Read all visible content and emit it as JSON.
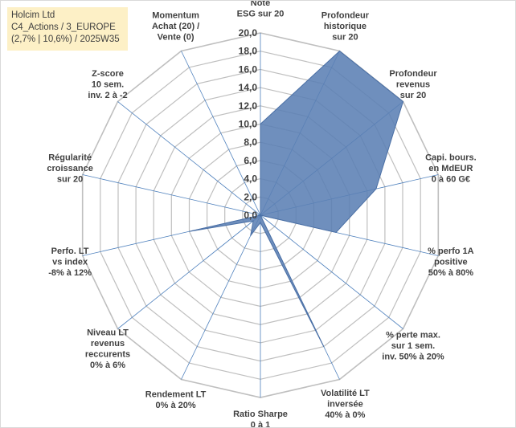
{
  "info_box": {
    "line1": "Holcim Ltd",
    "line2": "C4_Actions / 3_EUROPE",
    "line3": "(2,7% | 10,6%) / 2025W35"
  },
  "chart_data": {
    "type": "radar",
    "title": "",
    "rmin": 0,
    "rmax": 20,
    "tick_step": 2,
    "tick_labels": [
      "0,0",
      "2,0",
      "4,0",
      "6,0",
      "8,0",
      "10,0",
      "12,0",
      "14,0",
      "16,0",
      "18,0",
      "20,0"
    ],
    "grid": true,
    "colors": {
      "fill": "#5b7fb4",
      "stroke": "#4a6fa5",
      "grid": "#bfbfbf",
      "spoke": "#4f81bd",
      "text": "#404040",
      "info_bg": "#fdf0c6"
    },
    "axes": [
      [
        "Note",
        "ESG sur 20"
      ],
      [
        "Profondeur",
        "historique",
        "sur 20"
      ],
      [
        "Profondeur",
        "revenus",
        "sur 20"
      ],
      [
        "Capi. bours.",
        "en MdEUR",
        "0 à 60 G€"
      ],
      [
        "% perfo 1A",
        "positive",
        "50% à 80%"
      ],
      [
        "% perte max.",
        "sur 1 sem.",
        "inv. 50% à 20%"
      ],
      [
        "Volatilité LT",
        "inversée",
        "40% à 0%"
      ],
      [
        "Ratio Sharpe",
        "0 à 1"
      ],
      [
        "Rendement LT",
        "0% à 20%"
      ],
      [
        "Niveau LT",
        "revenus",
        "reccurents",
        "0% à 6%"
      ],
      [
        "Perfo. LT",
        "vs index",
        "-8% à 12%"
      ],
      [
        "Régularité",
        "croissance",
        "sur 20"
      ],
      [
        "Z-score",
        "10 sem.",
        "inv. 2 à -2"
      ],
      [
        "Momentum",
        "Achat (20) /",
        "Vente (0)"
      ]
    ],
    "series": [
      {
        "values": [
          10,
          20,
          20,
          13,
          8.5,
          0,
          16,
          0.8,
          2.5,
          1,
          8,
          0,
          0,
          0
        ]
      }
    ]
  }
}
